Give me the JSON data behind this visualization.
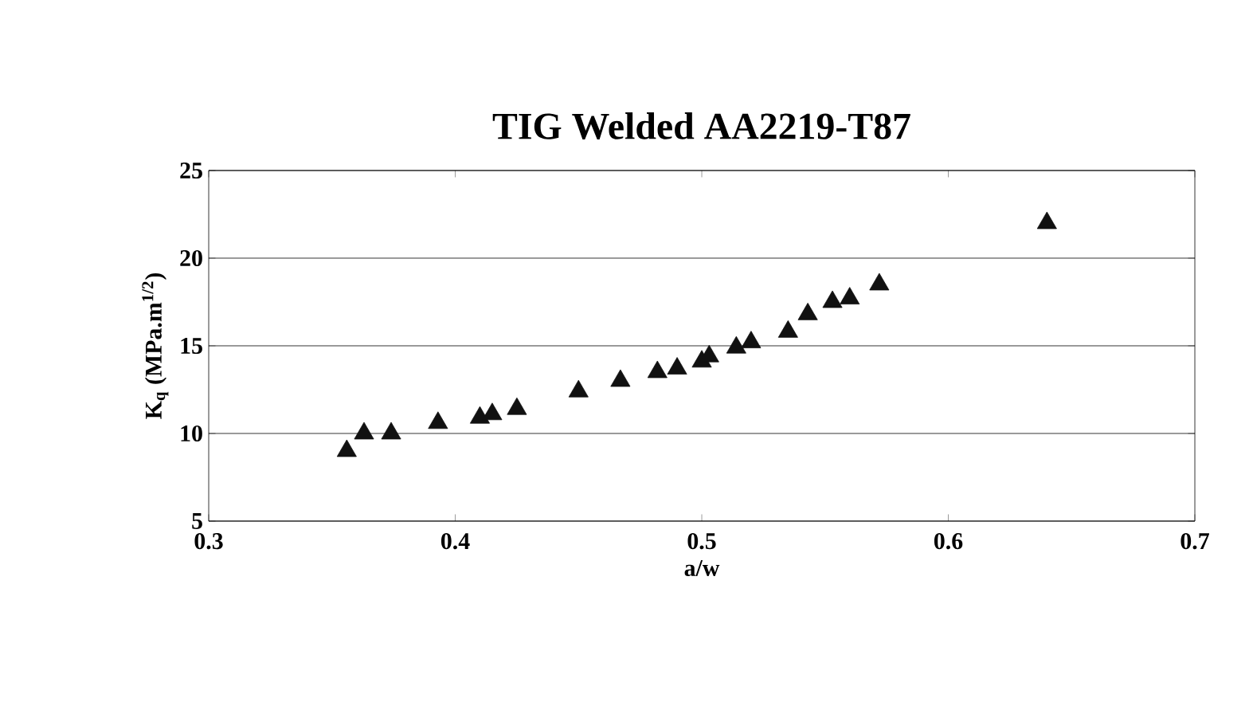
{
  "chart_data": {
    "type": "scatter",
    "title": "TIG Welded AA2219-T87",
    "xlabel": "a/w",
    "ylabel": "K$_{q}$ (MPa.m$^{1/2}$)",
    "x": [
      0.356,
      0.363,
      0.374,
      0.393,
      0.41,
      0.415,
      0.425,
      0.45,
      0.467,
      0.482,
      0.49,
      0.5,
      0.503,
      0.514,
      0.52,
      0.535,
      0.543,
      0.553,
      0.56,
      0.572,
      0.64
    ],
    "series": [
      {
        "color": "#111111",
        "values": [
          9.0,
          10.0,
          10.0,
          10.6,
          10.9,
          11.1,
          11.4,
          12.4,
          13.0,
          13.5,
          13.7,
          14.1,
          14.4,
          14.9,
          15.2,
          15.8,
          16.8,
          17.5,
          17.7,
          18.5,
          22.0
        ]
      }
    ],
    "xlim": [
      0.3,
      0.7
    ],
    "xticks": [
      0.3,
      0.4,
      0.5,
      0.6,
      0.7
    ],
    "ylim": [
      5,
      25
    ],
    "yticks": [
      5,
      10,
      15,
      20,
      25
    ],
    "grid": "y",
    "marker": "triangle"
  }
}
